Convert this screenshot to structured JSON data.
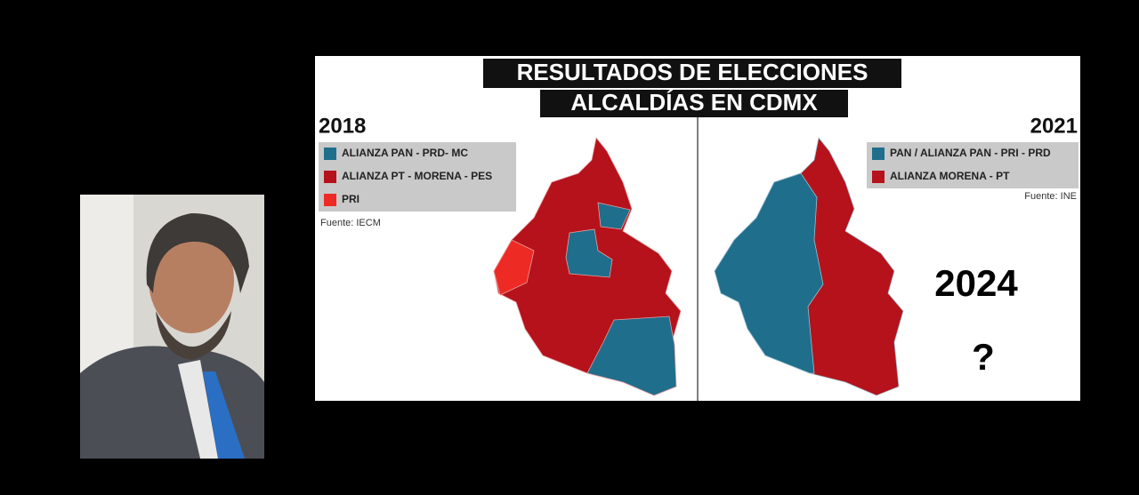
{
  "infographic": {
    "title_lines": [
      "RESULTADOS DE ELECCIONES",
      "ALCALDÍAS EN CDMX"
    ],
    "left": {
      "year": "2018",
      "source": "Fuente: IECM",
      "legend": [
        {
          "label": "ALIANZA PAN - PRD- MC",
          "color": "#1f6e8c"
        },
        {
          "label": "ALIANZA PT - MORENA - PES",
          "color": "#b5121b"
        },
        {
          "label": "PRI",
          "color": "#ee2a24"
        }
      ]
    },
    "right": {
      "year": "2021",
      "source": "Fuente: INE",
      "legend": [
        {
          "label": "PAN / ALIANZA PAN - PRI - PRD",
          "color": "#1f6e8c"
        },
        {
          "label": "ALIANZA MORENA - PT",
          "color": "#b5121b"
        }
      ]
    }
  },
  "overlay": {
    "year": "2024",
    "question": "?"
  }
}
